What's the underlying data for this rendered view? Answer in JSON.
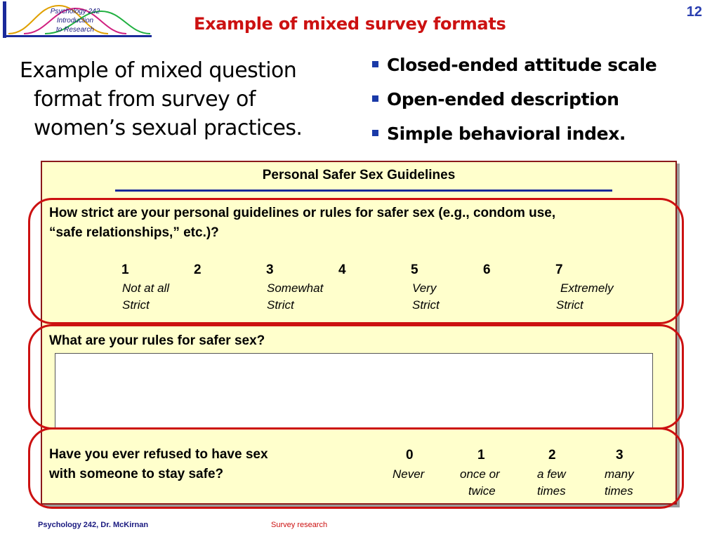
{
  "header": {
    "logo_lines": [
      "Psychology 242",
      "Introduction",
      "to Research"
    ],
    "slide_number": "12",
    "title": "Example of mixed survey formats"
  },
  "intro": {
    "text": "Example of mixed question format from survey of women’s sexual practices."
  },
  "bullets": [
    "Closed-ended attitude scale",
    "Open-ended description",
    "Simple behavioral index."
  ],
  "survey": {
    "title": "Personal Safer Sex Guidelines",
    "q1": {
      "line1": "How strict are your personal guidelines or rules for safer sex (e.g., condom use,",
      "line2": "“safe relationships,” etc.)?",
      "scale": [
        "1",
        "2",
        "3",
        "4",
        "5",
        "6",
        "7"
      ],
      "anchors": [
        {
          "top": "Not at all",
          "bottom": "Strict"
        },
        {
          "top": "Somewhat",
          "bottom": "Strict"
        },
        {
          "top": "Very",
          "bottom": "Strict"
        },
        {
          "top": "Extremely",
          "bottom": "Strict"
        }
      ]
    },
    "q2": {
      "text": "What are your rules for safer sex?"
    },
    "q3": {
      "line1": "Have you ever refused to have sex",
      "line2": "with someone to stay safe?",
      "options": [
        {
          "value": "0",
          "label1": "Never",
          "label2": ""
        },
        {
          "value": "1",
          "label1": "once or",
          "label2": "twice"
        },
        {
          "value": "2",
          "label1": "a few",
          "label2": "times"
        },
        {
          "value": "3",
          "label1": "many",
          "label2": "times"
        }
      ]
    }
  },
  "footer": {
    "left": "Psychology 242, Dr. McKirnan",
    "center": "Survey research"
  },
  "colors": {
    "title": "#cc1111",
    "bullet": "#1a3aa8",
    "panel_bg": "#ffffcc",
    "panel_border": "#8b1a1a",
    "oval": "#cc1111",
    "rule": "#1a2a9a"
  }
}
